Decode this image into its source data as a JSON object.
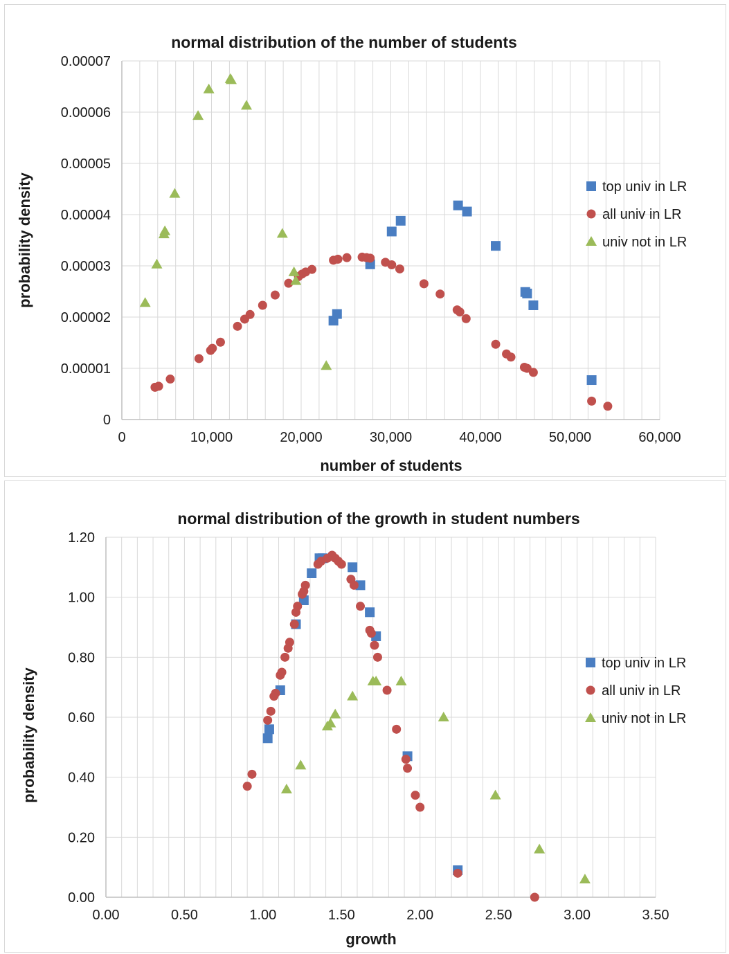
{
  "colors": {
    "top": "#4a7ec2",
    "all": "#c0504d",
    "not": "#9bbb59",
    "grid": "#d9d9d9",
    "axis": "#bfbfbf"
  },
  "chart_data": [
    {
      "type": "scatter",
      "title": "normal distribution of the number of students",
      "xlabel": "number of students",
      "ylabel": "probability density",
      "xlim": [
        0,
        60000
      ],
      "ylim": [
        0,
        7e-05
      ],
      "xticks": [
        0,
        10000,
        20000,
        30000,
        40000,
        50000,
        60000
      ],
      "xtick_labels": [
        "0",
        "10,000",
        "20,000",
        "30,000",
        "40,000",
        "50,000",
        "60,000"
      ],
      "yticks": [
        0,
        1e-05,
        2e-05,
        3e-05,
        4e-05,
        5e-05,
        6e-05,
        7e-05
      ],
      "ytick_labels": [
        "0",
        "0.00001",
        "0.00002",
        "0.00003",
        "0.00004",
        "0.00005",
        "0.00006",
        "0.00007"
      ],
      "grid": "vertical minor, horizontal major",
      "legend": "right",
      "series": [
        {
          "name": "top univ in LR",
          "marker": "square",
          "color_key": "top",
          "points": [
            [
              23600,
              1.93e-05
            ],
            [
              24000,
              2.06e-05
            ],
            [
              27700,
              3.03e-05
            ],
            [
              30100,
              3.67e-05
            ],
            [
              31100,
              3.88e-05
            ],
            [
              37500,
              4.18e-05
            ],
            [
              38500,
              4.06e-05
            ],
            [
              41700,
              3.39e-05
            ],
            [
              45000,
              2.49e-05
            ],
            [
              45200,
              2.46e-05
            ],
            [
              45900,
              2.23e-05
            ],
            [
              52400,
              7.7e-06
            ]
          ]
        },
        {
          "name": "all univ in LR",
          "marker": "circle",
          "color_key": "all",
          "points": [
            [
              3700,
              6.3e-06
            ],
            [
              4100,
              6.5e-06
            ],
            [
              5400,
              7.9e-06
            ],
            [
              8600,
              1.19e-05
            ],
            [
              9900,
              1.35e-05
            ],
            [
              10100,
              1.39e-05
            ],
            [
              11000,
              1.51e-05
            ],
            [
              12900,
              1.82e-05
            ],
            [
              13700,
              1.96e-05
            ],
            [
              14300,
              2.05e-05
            ],
            [
              15700,
              2.23e-05
            ],
            [
              17100,
              2.43e-05
            ],
            [
              18600,
              2.66e-05
            ],
            [
              19700,
              2.79e-05
            ],
            [
              20100,
              2.84e-05
            ],
            [
              20500,
              2.88e-05
            ],
            [
              21200,
              2.93e-05
            ],
            [
              23600,
              3.11e-05
            ],
            [
              24100,
              3.13e-05
            ],
            [
              25100,
              3.16e-05
            ],
            [
              26800,
              3.17e-05
            ],
            [
              27300,
              3.16e-05
            ],
            [
              27700,
              3.15e-05
            ],
            [
              29400,
              3.07e-05
            ],
            [
              30100,
              3.02e-05
            ],
            [
              31000,
              2.94e-05
            ],
            [
              33700,
              2.65e-05
            ],
            [
              35500,
              2.45e-05
            ],
            [
              37400,
              2.14e-05
            ],
            [
              37700,
              2.1e-05
            ],
            [
              38400,
              1.97e-05
            ],
            [
              41700,
              1.47e-05
            ],
            [
              42900,
              1.28e-05
            ],
            [
              43400,
              1.22e-05
            ],
            [
              44900,
              1.02e-05
            ],
            [
              45200,
              1e-05
            ],
            [
              45900,
              9.2e-06
            ],
            [
              52400,
              3.6e-06
            ],
            [
              54200,
              2.6e-06
            ]
          ]
        },
        {
          "name": "univ not in LR",
          "marker": "triangle",
          "color_key": "not",
          "points": [
            [
              2600,
              2.28e-05
            ],
            [
              3900,
              3.03e-05
            ],
            [
              4700,
              3.62e-05
            ],
            [
              4800,
              3.68e-05
            ],
            [
              5900,
              4.41e-05
            ],
            [
              8500,
              5.93e-05
            ],
            [
              9700,
              6.45e-05
            ],
            [
              12100,
              6.65e-05
            ],
            [
              12200,
              6.63e-05
            ],
            [
              13900,
              6.13e-05
            ],
            [
              17900,
              3.63e-05
            ],
            [
              19200,
              2.88e-05
            ],
            [
              19400,
              2.71e-05
            ],
            [
              22800,
              1.05e-05
            ]
          ]
        }
      ]
    },
    {
      "type": "scatter",
      "title": "normal distribution of the growth in student numbers",
      "xlabel": "growth",
      "ylabel": "probability density",
      "xlim": [
        0,
        3.5
      ],
      "ylim": [
        0,
        1.2
      ],
      "xticks": [
        0,
        0.5,
        1,
        1.5,
        2,
        2.5,
        3,
        3.5
      ],
      "xtick_labels": [
        "0.00",
        "0.50",
        "1.00",
        "1.50",
        "2.00",
        "2.50",
        "3.00",
        "3.50"
      ],
      "yticks": [
        0,
        0.2,
        0.4,
        0.6,
        0.8,
        1.0,
        1.2
      ],
      "ytick_labels": [
        "0.00",
        "0.20",
        "0.40",
        "0.60",
        "0.80",
        "1.00",
        "1.20"
      ],
      "grid": "vertical minor, horizontal major",
      "legend": "right",
      "series": [
        {
          "name": "top univ in LR",
          "marker": "square",
          "color_key": "top",
          "points": [
            [
              1.03,
              0.53
            ],
            [
              1.04,
              0.56
            ],
            [
              1.11,
              0.69
            ],
            [
              1.21,
              0.91
            ],
            [
              1.26,
              0.99
            ],
            [
              1.31,
              1.08
            ],
            [
              1.36,
              1.13
            ],
            [
              1.38,
              1.13
            ],
            [
              1.57,
              1.1
            ],
            [
              1.62,
              1.04
            ],
            [
              1.68,
              0.95
            ],
            [
              1.72,
              0.87
            ],
            [
              1.92,
              0.47
            ],
            [
              2.24,
              0.09
            ]
          ]
        },
        {
          "name": "all univ in LR",
          "marker": "circle",
          "color_key": "all",
          "points": [
            [
              0.9,
              0.37
            ],
            [
              0.93,
              0.41
            ],
            [
              1.03,
              0.59
            ],
            [
              1.05,
              0.62
            ],
            [
              1.07,
              0.67
            ],
            [
              1.08,
              0.68
            ],
            [
              1.11,
              0.74
            ],
            [
              1.12,
              0.75
            ],
            [
              1.14,
              0.8
            ],
            [
              1.16,
              0.83
            ],
            [
              1.17,
              0.85
            ],
            [
              1.2,
              0.91
            ],
            [
              1.21,
              0.95
            ],
            [
              1.22,
              0.97
            ],
            [
              1.25,
              1.01
            ],
            [
              1.26,
              1.02
            ],
            [
              1.27,
              1.04
            ],
            [
              1.35,
              1.11
            ],
            [
              1.37,
              1.12
            ],
            [
              1.41,
              1.13
            ],
            [
              1.44,
              1.14
            ],
            [
              1.46,
              1.13
            ],
            [
              1.48,
              1.12
            ],
            [
              1.5,
              1.11
            ],
            [
              1.56,
              1.06
            ],
            [
              1.58,
              1.04
            ],
            [
              1.62,
              0.97
            ],
            [
              1.68,
              0.89
            ],
            [
              1.69,
              0.88
            ],
            [
              1.71,
              0.84
            ],
            [
              1.73,
              0.8
            ],
            [
              1.79,
              0.69
            ],
            [
              1.85,
              0.56
            ],
            [
              1.91,
              0.46
            ],
            [
              1.92,
              0.43
            ],
            [
              1.97,
              0.34
            ],
            [
              2.0,
              0.3
            ],
            [
              2.24,
              0.08
            ],
            [
              2.73,
              0.0
            ]
          ]
        },
        {
          "name": "univ not in LR",
          "marker": "triangle",
          "color_key": "not",
          "points": [
            [
              1.15,
              0.36
            ],
            [
              1.24,
              0.44
            ],
            [
              1.41,
              0.57
            ],
            [
              1.43,
              0.58
            ],
            [
              1.46,
              0.61
            ],
            [
              1.57,
              0.67
            ],
            [
              1.7,
              0.72
            ],
            [
              1.72,
              0.72
            ],
            [
              1.88,
              0.72
            ],
            [
              2.15,
              0.6
            ],
            [
              2.48,
              0.34
            ],
            [
              2.76,
              0.16
            ],
            [
              3.05,
              0.06
            ]
          ]
        }
      ]
    }
  ]
}
